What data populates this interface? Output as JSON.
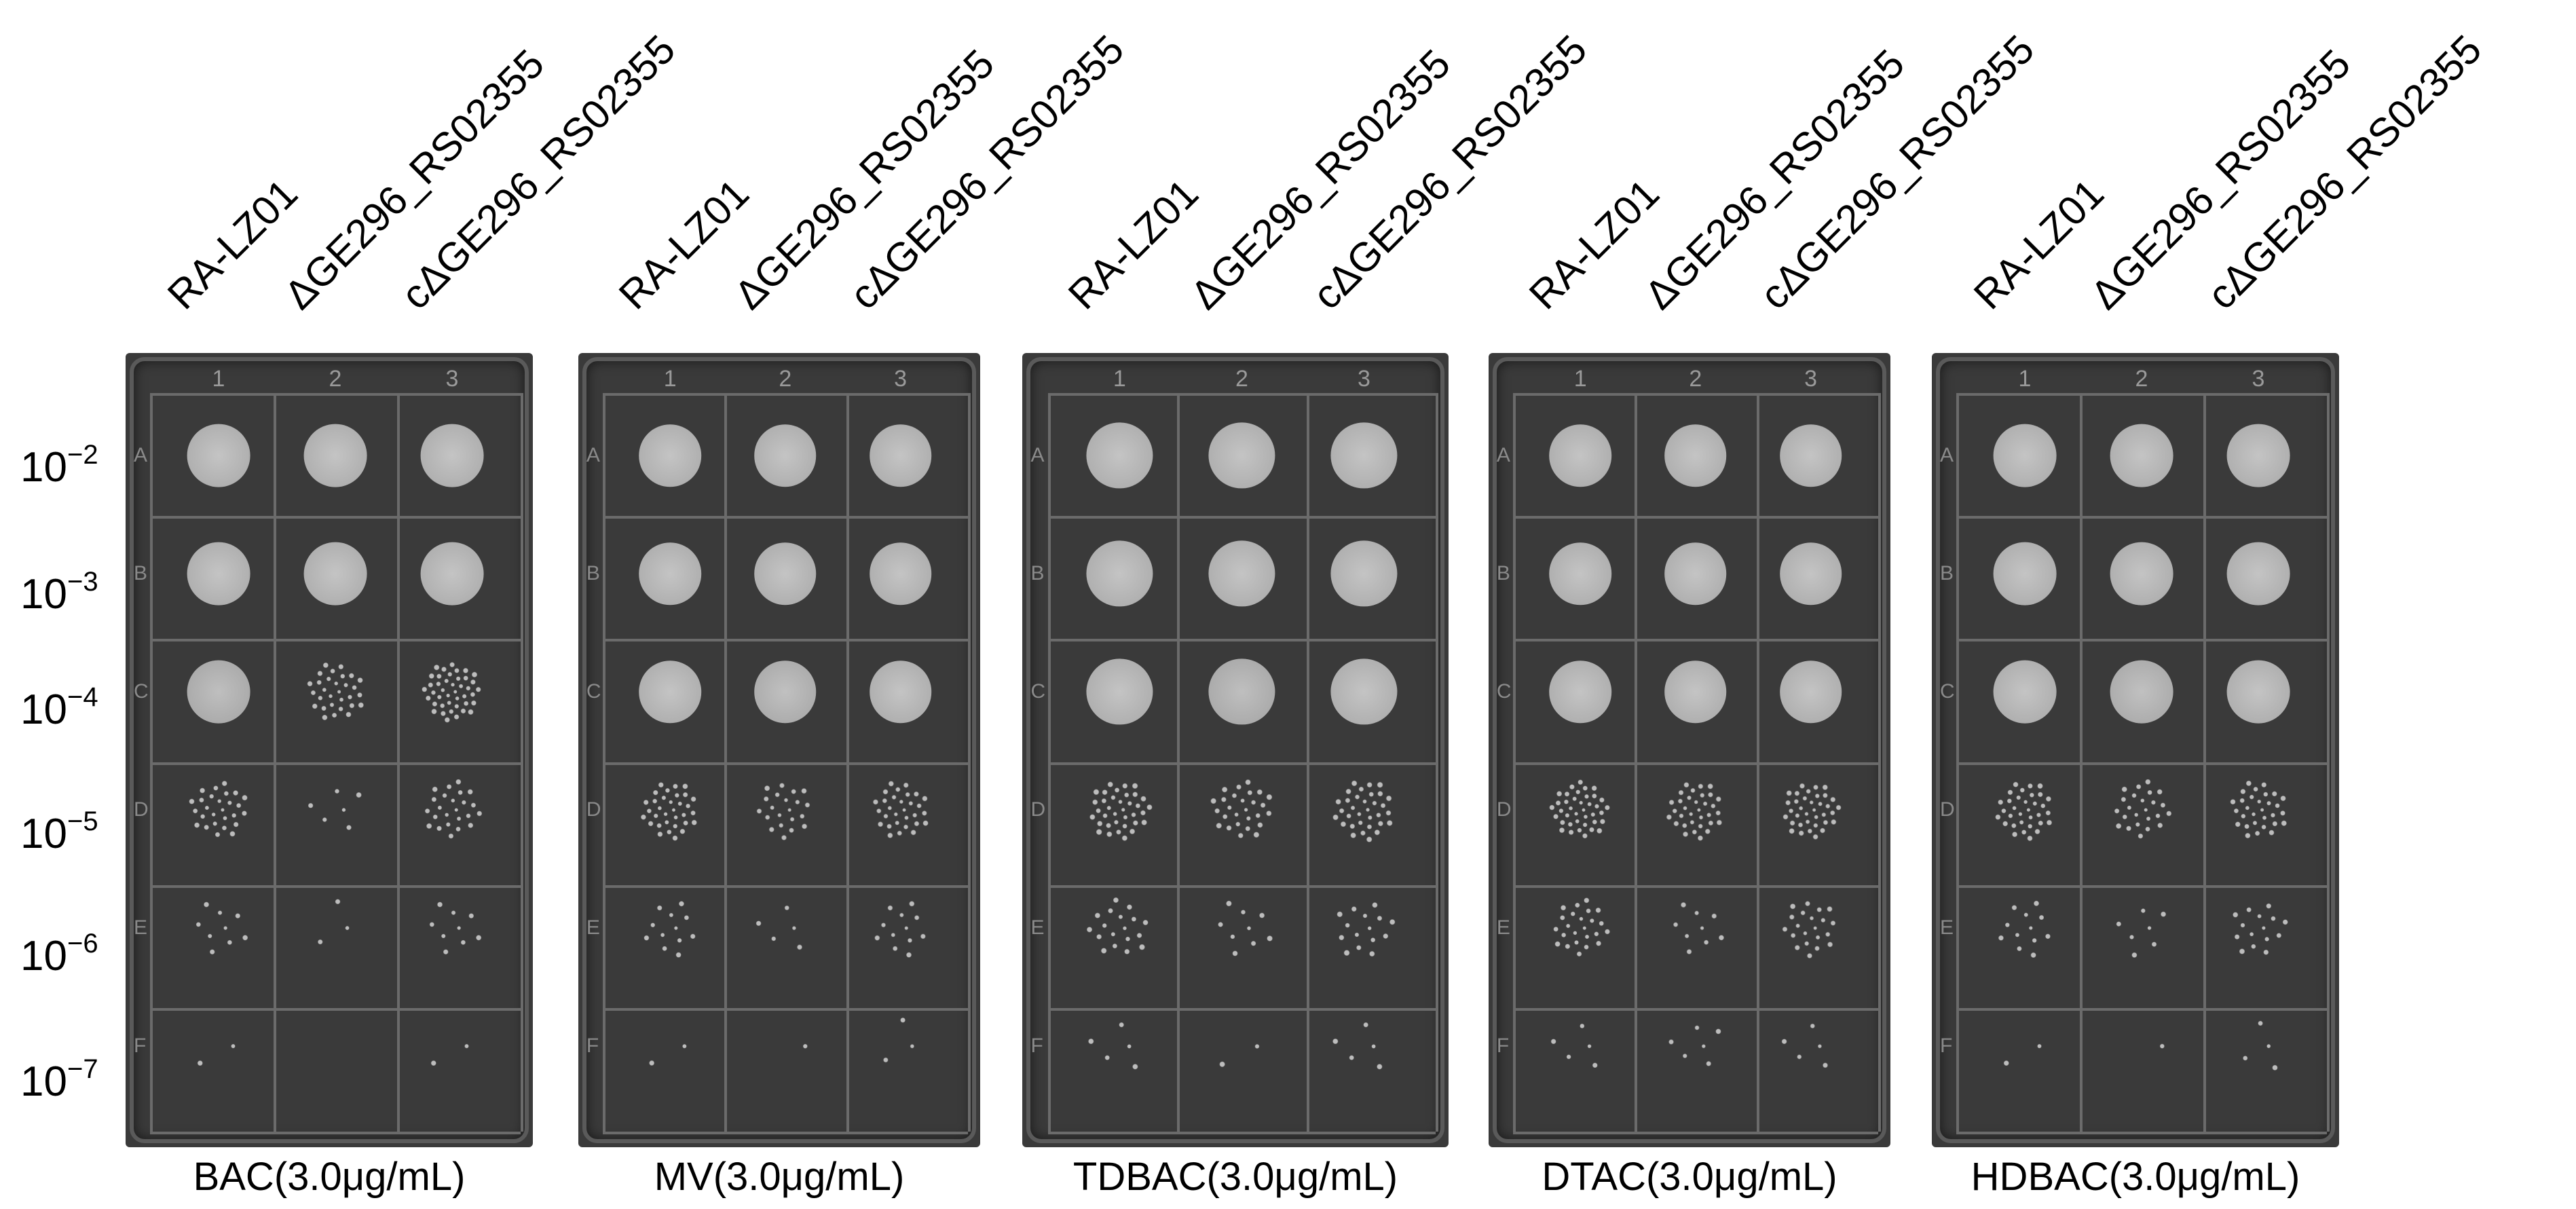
{
  "dilutions": [
    "10",
    "10",
    "10",
    "10",
    "10",
    "10"
  ],
  "exponents": [
    "−2",
    "−3",
    "−4",
    "−5",
    "−6",
    "−7"
  ],
  "strains": [
    "RA-LZ01",
    "ΔGE296_RS02355",
    "cΔGE296_RS02355"
  ],
  "column_numbers": [
    "1",
    "2",
    "3"
  ],
  "row_letters": [
    "A",
    "B",
    "C",
    "D",
    "E",
    "F"
  ],
  "panels": [
    {
      "condition": "BAC(3.0μg/mL)",
      "growth": [
        [
          1.0,
          1.0,
          1.0
        ],
        [
          1.0,
          1.0,
          1.0
        ],
        [
          0.85,
          0.5,
          0.7
        ],
        [
          0.45,
          0.1,
          0.4
        ],
        [
          0.15,
          0.05,
          0.15
        ],
        [
          0.03,
          0.0,
          0.03
        ]
      ]
    },
    {
      "condition": "MV(3.0μg/mL)",
      "growth": [
        [
          1.0,
          1.0,
          1.0
        ],
        [
          1.0,
          1.0,
          1.0
        ],
        [
          1.0,
          0.9,
          1.0
        ],
        [
          0.55,
          0.35,
          0.5
        ],
        [
          0.2,
          0.08,
          0.2
        ],
        [
          0.03,
          0.02,
          0.05
        ]
      ]
    },
    {
      "condition": "TDBAC(3.0μg/mL)",
      "growth": [
        [
          1.0,
          1.0,
          1.0
        ],
        [
          1.0,
          1.0,
          1.0
        ],
        [
          1.0,
          0.85,
          1.0
        ],
        [
          0.6,
          0.45,
          0.55
        ],
        [
          0.3,
          0.15,
          0.25
        ],
        [
          0.08,
          0.03,
          0.08
        ]
      ]
    },
    {
      "condition": "DTAC(3.0μg/mL)",
      "growth": [
        [
          1.0,
          1.0,
          1.0
        ],
        [
          1.0,
          1.0,
          1.0
        ],
        [
          1.0,
          1.0,
          1.0
        ],
        [
          0.65,
          0.55,
          0.6
        ],
        [
          0.4,
          0.15,
          0.35
        ],
        [
          0.08,
          0.1,
          0.08
        ]
      ]
    },
    {
      "condition": "HDBAC(3.0μg/mL)",
      "growth": [
        [
          1.0,
          1.0,
          1.0
        ],
        [
          1.0,
          1.0,
          1.0
        ],
        [
          1.0,
          0.9,
          1.0
        ],
        [
          0.55,
          0.4,
          0.5
        ],
        [
          0.2,
          0.12,
          0.25
        ],
        [
          0.04,
          0.02,
          0.06
        ]
      ]
    }
  ],
  "colors": {
    "plate": "#3a3a3a",
    "grid": "#6b6b6b",
    "colony": "#b4b4b4"
  }
}
